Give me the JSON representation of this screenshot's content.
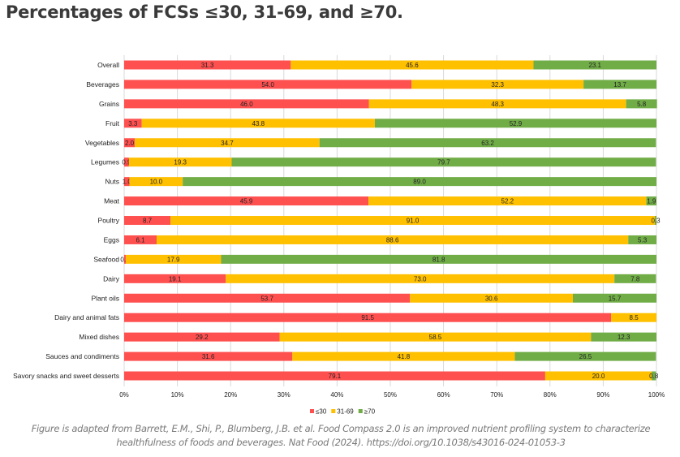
{
  "title": "Percentages of FCSs ≤30, 31-69, and ≥70.",
  "caption": "Figure is adapted from Barrett, E.M., Shi, P., Blumberg, J.B. et al. Food Compass 2.0 is an improved nutrient profiling system to characterize healthfulness of foods and beverages. Nat Food (2024). https://doi.org/10.1038/s43016-024-01053-3",
  "colors": {
    "low": "#FF5050",
    "mid": "#FFC000",
    "high": "#70AD47",
    "grid": "#d9d9d9"
  },
  "chart_data": {
    "type": "bar",
    "orientation": "horizontal",
    "stacked": "percent",
    "title": "Percentages of FCSs ≤30, 31-69, and ≥70.",
    "xlim": [
      0,
      100
    ],
    "xticks": [
      "0%",
      "10%",
      "20%",
      "30%",
      "40%",
      "50%",
      "60%",
      "70%",
      "80%",
      "90%",
      "100%"
    ],
    "grid": "vertical",
    "legend_position": "bottom",
    "categories": [
      "Overall",
      "Beverages",
      "Grains",
      "Fruit",
      "Vegetables",
      "Legumes",
      "Nuts",
      "Meat",
      "Poultry",
      "Eggs",
      "Seafood",
      "Dairy",
      "Plant oils",
      "Dairy and animal fats",
      "Mixed dishes",
      "Sauces and condiments",
      "Savory snacks and sweet desserts"
    ],
    "series": [
      {
        "name": "≤30",
        "values": [
          31.3,
          54.0,
          46.0,
          3.3,
          2.0,
          0.9,
          1.0,
          45.9,
          8.7,
          6.1,
          0.3,
          19.1,
          53.7,
          91.5,
          29.2,
          31.6,
          79.1
        ]
      },
      {
        "name": "31-69",
        "values": [
          45.6,
          32.3,
          48.3,
          43.8,
          34.7,
          19.3,
          10.0,
          52.2,
          91.0,
          88.6,
          17.9,
          73.0,
          30.6,
          8.5,
          58.5,
          41.8,
          20.0
        ]
      },
      {
        "name": "≥70",
        "values": [
          23.1,
          13.7,
          5.8,
          52.9,
          63.2,
          79.7,
          89.0,
          1.9,
          0.3,
          5.3,
          81.8,
          7.8,
          15.7,
          0,
          12.3,
          26.5,
          0.8
        ]
      }
    ]
  }
}
